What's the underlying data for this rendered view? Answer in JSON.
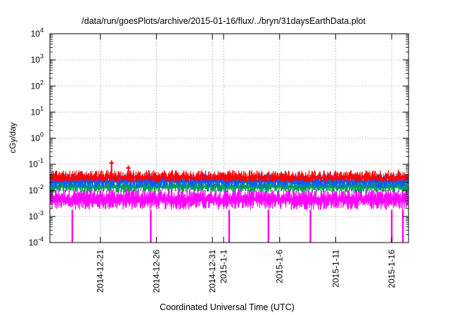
{
  "chart_data": {
    "type": "line",
    "title": "/data/run/goesPlots/archive/2015-01-16/flux/../bryn/31daysEarthData.plot",
    "xlabel": "Coordinated Universal Time (UTC)",
    "ylabel": "cGy/day",
    "yscale": "log",
    "ylim": [
      0.0001,
      10000
    ],
    "xlim": [
      "2014-12-16T12:00",
      "2015-01-17T12:00"
    ],
    "grid": true,
    "y_ticks": [
      {
        "value": 0.0001,
        "base": "10",
        "exp": "-4"
      },
      {
        "value": 0.001,
        "base": "10",
        "exp": "-3"
      },
      {
        "value": 0.01,
        "base": "10",
        "exp": "-2"
      },
      {
        "value": 0.1,
        "base": "10",
        "exp": "-1"
      },
      {
        "value": 1,
        "base": "10",
        "exp": "0"
      },
      {
        "value": 10,
        "base": "10",
        "exp": "1"
      },
      {
        "value": 100,
        "base": "10",
        "exp": "2"
      },
      {
        "value": 1000,
        "base": "10",
        "exp": "3"
      },
      {
        "value": 10000,
        "base": "10",
        "exp": "4"
      }
    ],
    "x_ticks": [
      {
        "date": "2014-12-21",
        "label": "2014-12-21"
      },
      {
        "date": "2014-12-26",
        "label": "2014-12-26"
      },
      {
        "date": "2014-12-31",
        "label": "2014-12-31"
      },
      {
        "date": "2015-01-01",
        "label": "2015-1-1"
      },
      {
        "date": "2015-01-06",
        "label": "2015-1-6"
      },
      {
        "date": "2015-01-11",
        "label": "2015-1-11"
      },
      {
        "date": "2015-01-16",
        "label": "2015-1-16"
      }
    ],
    "series": [
      {
        "color": "#ff00ff",
        "level": 0.005,
        "min": 0.0018,
        "max": 0.012,
        "dips": [
          {
            "date": "2014-12-18T12:00",
            "value": 0.0001
          },
          {
            "date": "2014-12-25T12:00",
            "value": 0.0001
          },
          {
            "date": "2015-01-01T12:00",
            "value": 0.0001
          },
          {
            "date": "2015-01-05T00:00",
            "value": 0.0001
          },
          {
            "date": "2015-01-08T18:00",
            "value": 0.0001
          },
          {
            "date": "2015-01-16T00:00",
            "value": 0.0001
          },
          {
            "date": "2015-01-17T00:00",
            "value": 0.0001
          }
        ]
      },
      {
        "color": "#00a050",
        "level": 0.015,
        "min": 0.008,
        "max": 0.025
      },
      {
        "color": "#0060ff",
        "level": 0.024,
        "min": 0.012,
        "max": 0.045
      },
      {
        "color": "#ff0000",
        "level": 0.032,
        "min": 0.02,
        "max": 0.06,
        "peaks": [
          {
            "date": "2014-12-22T00:00",
            "value": 0.14
          },
          {
            "date": "2014-12-23T12:00",
            "value": 0.09
          }
        ]
      }
    ]
  }
}
